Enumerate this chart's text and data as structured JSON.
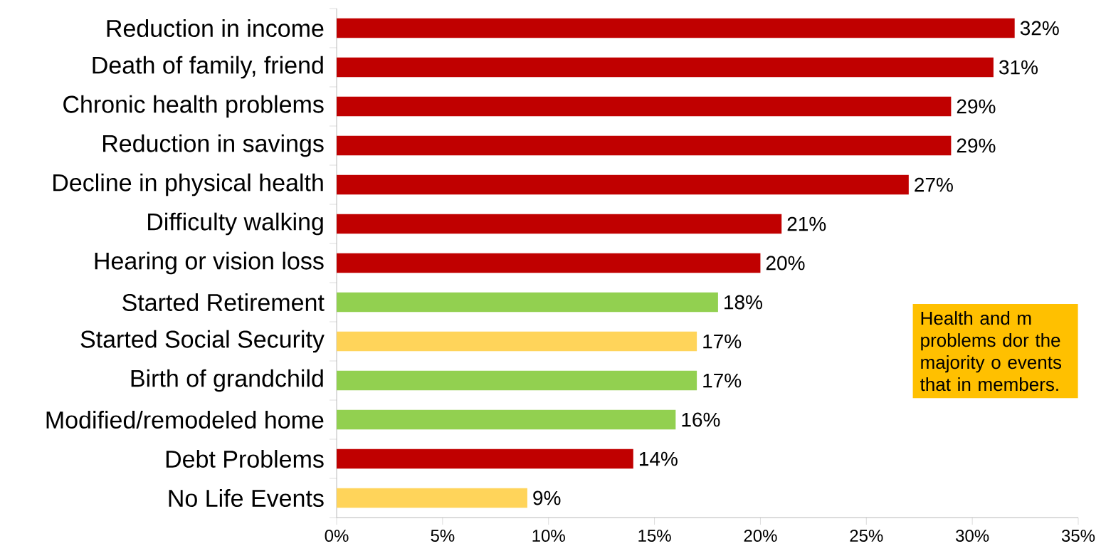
{
  "chart_data": {
    "type": "bar",
    "orientation": "horizontal",
    "categories": [
      "Reduction in income",
      "Death of family, friend",
      "Chronic health problems",
      "Reduction in savings",
      "Decline in physical health",
      "Difficulty walking",
      "Hearing or vision loss",
      "Started Retirement",
      "Started Social Security",
      "Birth of grandchild",
      "Modified/remodeled home",
      "Debt Problems",
      "No Life Events"
    ],
    "values": [
      32,
      31,
      29,
      29,
      27,
      21,
      20,
      18,
      17,
      17,
      16,
      14,
      9
    ],
    "value_labels": [
      "32%",
      "31%",
      "29%",
      "29%",
      "27%",
      "21%",
      "20%",
      "18%",
      "17%",
      "17%",
      "16%",
      "14%",
      "9%"
    ],
    "colors": [
      "#c00000",
      "#c00000",
      "#c00000",
      "#c00000",
      "#c00000",
      "#c00000",
      "#c00000",
      "#92d050",
      "#ffd45a",
      "#92d050",
      "#92d050",
      "#c00000",
      "#ffd45a"
    ],
    "xlim": [
      0,
      35
    ],
    "xticks": [
      {
        "value": 0,
        "label": "0%"
      },
      {
        "value": 5,
        "label": "5%"
      },
      {
        "value": 10,
        "label": "10%"
      },
      {
        "value": 15,
        "label": "15%"
      },
      {
        "value": 20,
        "label": "20%"
      },
      {
        "value": 25,
        "label": "25%"
      },
      {
        "value": 30,
        "label": "30%"
      },
      {
        "value": 35,
        "label": "35%"
      }
    ],
    "annotations": [
      "Health and m problems dor the majority o events that in members."
    ]
  }
}
